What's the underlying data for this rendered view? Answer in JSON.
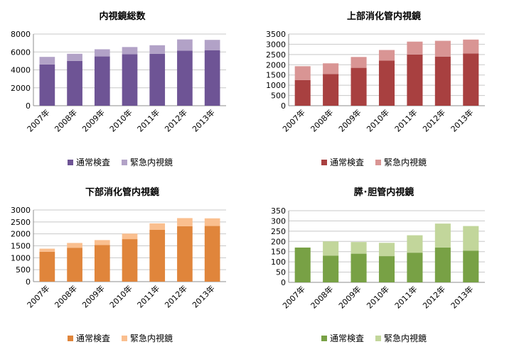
{
  "chart_data": [
    {
      "type": "bar",
      "stacked": true,
      "title": "内視鏡総数",
      "categories": [
        "2007年",
        "2008年",
        "2009年",
        "2010年",
        "2011年",
        "2012年",
        "2013年"
      ],
      "series": [
        {
          "name": "通常検査",
          "values": [
            4600,
            5000,
            5500,
            5750,
            5800,
            6150,
            6200
          ],
          "color": "#6e5495"
        },
        {
          "name": "緊急内視鏡",
          "values": [
            850,
            800,
            800,
            800,
            950,
            1250,
            1150
          ],
          "color": "#b2a2c7"
        }
      ],
      "ylim": [
        0,
        8000
      ],
      "yticks": [
        0,
        2000,
        4000,
        6000,
        8000
      ],
      "legend": "bottom"
    },
    {
      "type": "bar",
      "stacked": true,
      "title": "上部消化管内視鏡",
      "categories": [
        "2007年",
        "2008年",
        "2009年",
        "2010年",
        "2011年",
        "2012年",
        "2013年"
      ],
      "series": [
        {
          "name": "通常検査",
          "values": [
            1250,
            1550,
            1850,
            2200,
            2500,
            2400,
            2550
          ],
          "color": "#a84040"
        },
        {
          "name": "緊急内視鏡",
          "values": [
            680,
            520,
            530,
            520,
            630,
            770,
            680
          ],
          "color": "#d99594"
        }
      ],
      "ylim": [
        0,
        3500
      ],
      "yticks": [
        0,
        500,
        1000,
        1500,
        2000,
        2500,
        3000,
        3500
      ],
      "legend": "bottom"
    },
    {
      "type": "bar",
      "stacked": true,
      "title": "下部消化管内視鏡",
      "categories": [
        "2007年",
        "2008年",
        "2009年",
        "2010年",
        "2011年",
        "2012年",
        "2013年"
      ],
      "series": [
        {
          "name": "通常検査",
          "values": [
            1250,
            1420,
            1530,
            1780,
            2170,
            2320,
            2330
          ],
          "color": "#e0853b"
        },
        {
          "name": "緊急内視鏡",
          "values": [
            130,
            200,
            210,
            230,
            270,
            340,
            320
          ],
          "color": "#fabf8f"
        }
      ],
      "ylim": [
        0,
        3000
      ],
      "yticks": [
        0,
        500,
        1000,
        1500,
        2000,
        2500,
        3000
      ],
      "legend": "bottom"
    },
    {
      "type": "bar",
      "stacked": true,
      "title": "膵･胆管内視鏡",
      "categories": [
        "2007年",
        "2008年",
        "2009年",
        "2010年",
        "2011年",
        "2012年",
        "2013年"
      ],
      "series": [
        {
          "name": "通常検査",
          "values": [
            170,
            130,
            140,
            128,
            145,
            170,
            155
          ],
          "color": "#78a145"
        },
        {
          "name": "緊急内視鏡",
          "values": [
            0,
            70,
            57,
            65,
            85,
            117,
            120
          ],
          "color": "#c2d69b"
        }
      ],
      "ylim": [
        0,
        350
      ],
      "yticks": [
        0,
        50,
        100,
        150,
        200,
        250,
        300,
        350
      ],
      "legend": "bottom"
    }
  ]
}
